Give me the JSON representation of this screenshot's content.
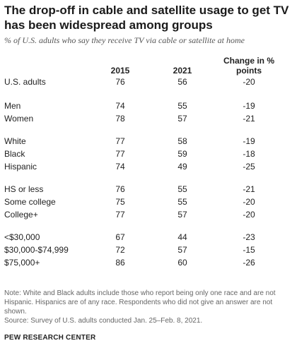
{
  "title": "The drop-off in cable and satellite usage to get TV has been widespread among groups",
  "subtitle": "% of U.S. adults who say they receive TV via cable or satellite at home",
  "columns": [
    "2015",
    "2021",
    "Change in % points"
  ],
  "chart_data": {
    "type": "table",
    "columns": [
      "2015",
      "2021",
      "Change in % points"
    ],
    "rows": [
      {
        "label": "U.S. adults",
        "values": [
          "76",
          "56",
          "-20"
        ]
      },
      {
        "label": "Men",
        "values": [
          "74",
          "55",
          "-19"
        ]
      },
      {
        "label": "Women",
        "values": [
          "78",
          "57",
          "-21"
        ]
      },
      {
        "label": "White",
        "values": [
          "77",
          "58",
          "-19"
        ]
      },
      {
        "label": "Black",
        "values": [
          "77",
          "59",
          "-18"
        ]
      },
      {
        "label": "Hispanic",
        "values": [
          "74",
          "49",
          "-25"
        ]
      },
      {
        "label": "HS or less",
        "values": [
          "76",
          "55",
          "-21"
        ]
      },
      {
        "label": "Some college",
        "values": [
          "75",
          "55",
          "-20"
        ]
      },
      {
        "label": "College+",
        "values": [
          "77",
          "57",
          "-20"
        ]
      },
      {
        "label": "<$30,000",
        "values": [
          "67",
          "44",
          "-23"
        ]
      },
      {
        "label": "$30,000-$74,999",
        "values": [
          "72",
          "57",
          "-15"
        ]
      },
      {
        "label": "$75,000+",
        "values": [
          "86",
          "60",
          "-26"
        ]
      }
    ]
  },
  "note": "Note: White and Black adults include those who report being only one race and are not Hispanic. Hispanics are of any race. Respondents who did not give an answer are not shown.",
  "source": "Source: Survey of U.S. adults conducted Jan. 25–Feb. 8, 2021.",
  "brand": "PEW RESEARCH CENTER"
}
